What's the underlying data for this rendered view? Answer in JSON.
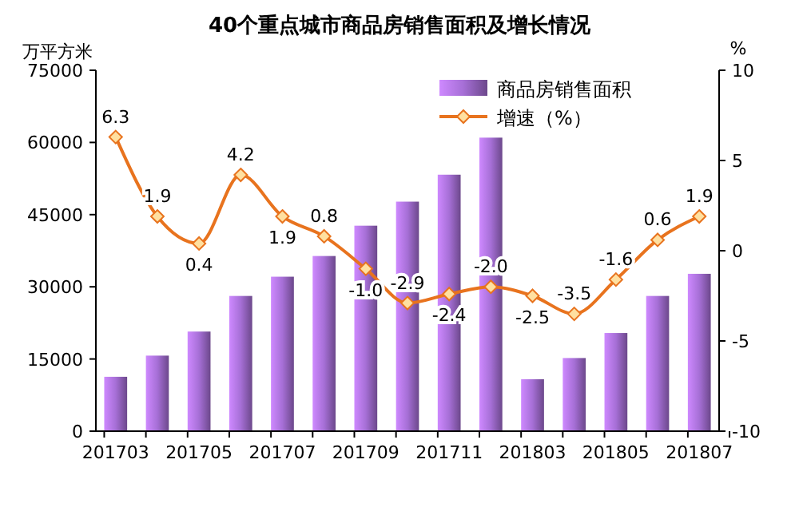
{
  "chart_data": {
    "type": "bar",
    "title": "40个重点城市商品房销售面积及增长情况",
    "ylabel": "万平方米",
    "y2label": "%",
    "categories": [
      "201703",
      null,
      "201705",
      null,
      "201707",
      null,
      "201709",
      null,
      "201711",
      null,
      "201803",
      null,
      "201805",
      null,
      "201807"
    ],
    "series": [
      {
        "name": "商品房销售面积",
        "color": "#a66fd6",
        "values": [
          11300,
          15700,
          20700,
          28100,
          32100,
          36400,
          42700,
          47700,
          53300,
          61000,
          10800,
          15200,
          20400,
          28100,
          32700
        ]
      },
      {
        "name": "增速（%）",
        "type": "line",
        "axis": "y2",
        "color": "#e8731e",
        "marker": "diamond",
        "values": [
          6.3,
          1.9,
          0.4,
          4.2,
          1.9,
          0.8,
          -1.0,
          -2.9,
          -2.4,
          -2.0,
          -2.5,
          -3.5,
          -1.6,
          0.6,
          1.9
        ],
        "value_labels": [
          "6.3",
          "1.9",
          "0.4",
          "4.2",
          "1.9",
          "0.8",
          "-1.0",
          "-2.9",
          "-2.4",
          "-2.0",
          "-2.5",
          "-3.5",
          "-1.6",
          "0.6",
          "1.9"
        ]
      }
    ],
    "ylim": [
      0,
      75000
    ],
    "yticks": [
      0,
      15000,
      30000,
      45000,
      60000,
      75000
    ],
    "y2lim": [
      -10,
      10
    ],
    "y2ticks": [
      -10,
      -5,
      0,
      5,
      10
    ],
    "legend": "top right",
    "grid": false
  }
}
